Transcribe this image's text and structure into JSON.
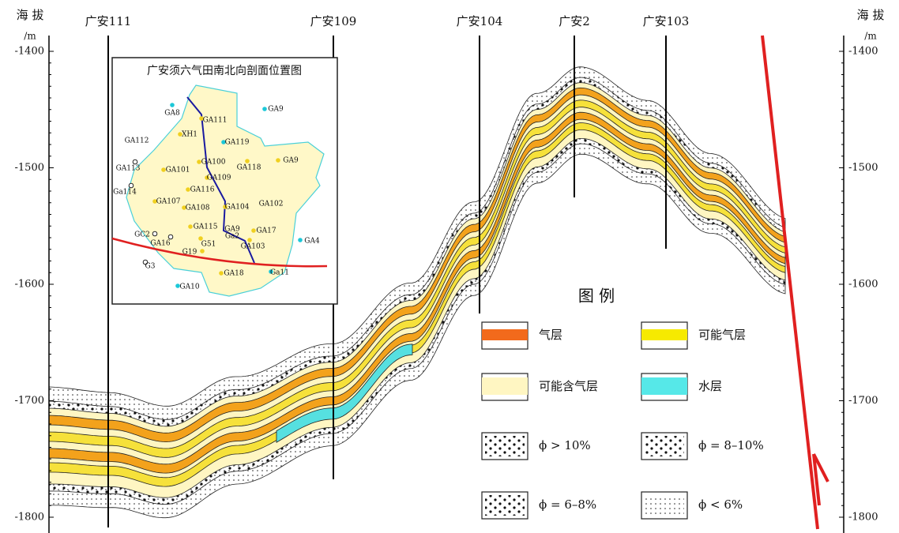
{
  "axis": {
    "left_title": "海 拔",
    "left_unit": "/m",
    "right_title": "海 拔",
    "right_unit": "/m",
    "yticks": [
      -1400,
      -1500,
      -1600,
      -1700,
      -1800
    ]
  },
  "wells": [
    "广安111",
    "广安109",
    "广安104",
    "广安2",
    "广安103"
  ],
  "inset": {
    "title": "广安须六气田南北向剖面位置图",
    "labels": [
      "GA8",
      "GA111",
      "GA9",
      "GA112",
      "XH1",
      "GA119",
      "GA113",
      "GA101",
      "GA100",
      "GA118",
      "GA9",
      "Ga114",
      "GA116",
      "GA109",
      "GA102",
      "GA107",
      "GA108",
      "GA104",
      "GA115",
      "GA9",
      "Ga2",
      "GA17",
      "GC2",
      "GA16",
      "G51",
      "GA103",
      "GA4",
      "G19",
      "G3",
      "GA18",
      "Ga11",
      "GA10"
    ]
  },
  "legend": {
    "title": "图 例",
    "items": [
      "气层",
      "可能气层",
      "可能含气层",
      "水层",
      "ϕ > 10%",
      "ϕ = 8–10%",
      "ϕ = 6–8%",
      "ϕ < 6%"
    ]
  }
}
